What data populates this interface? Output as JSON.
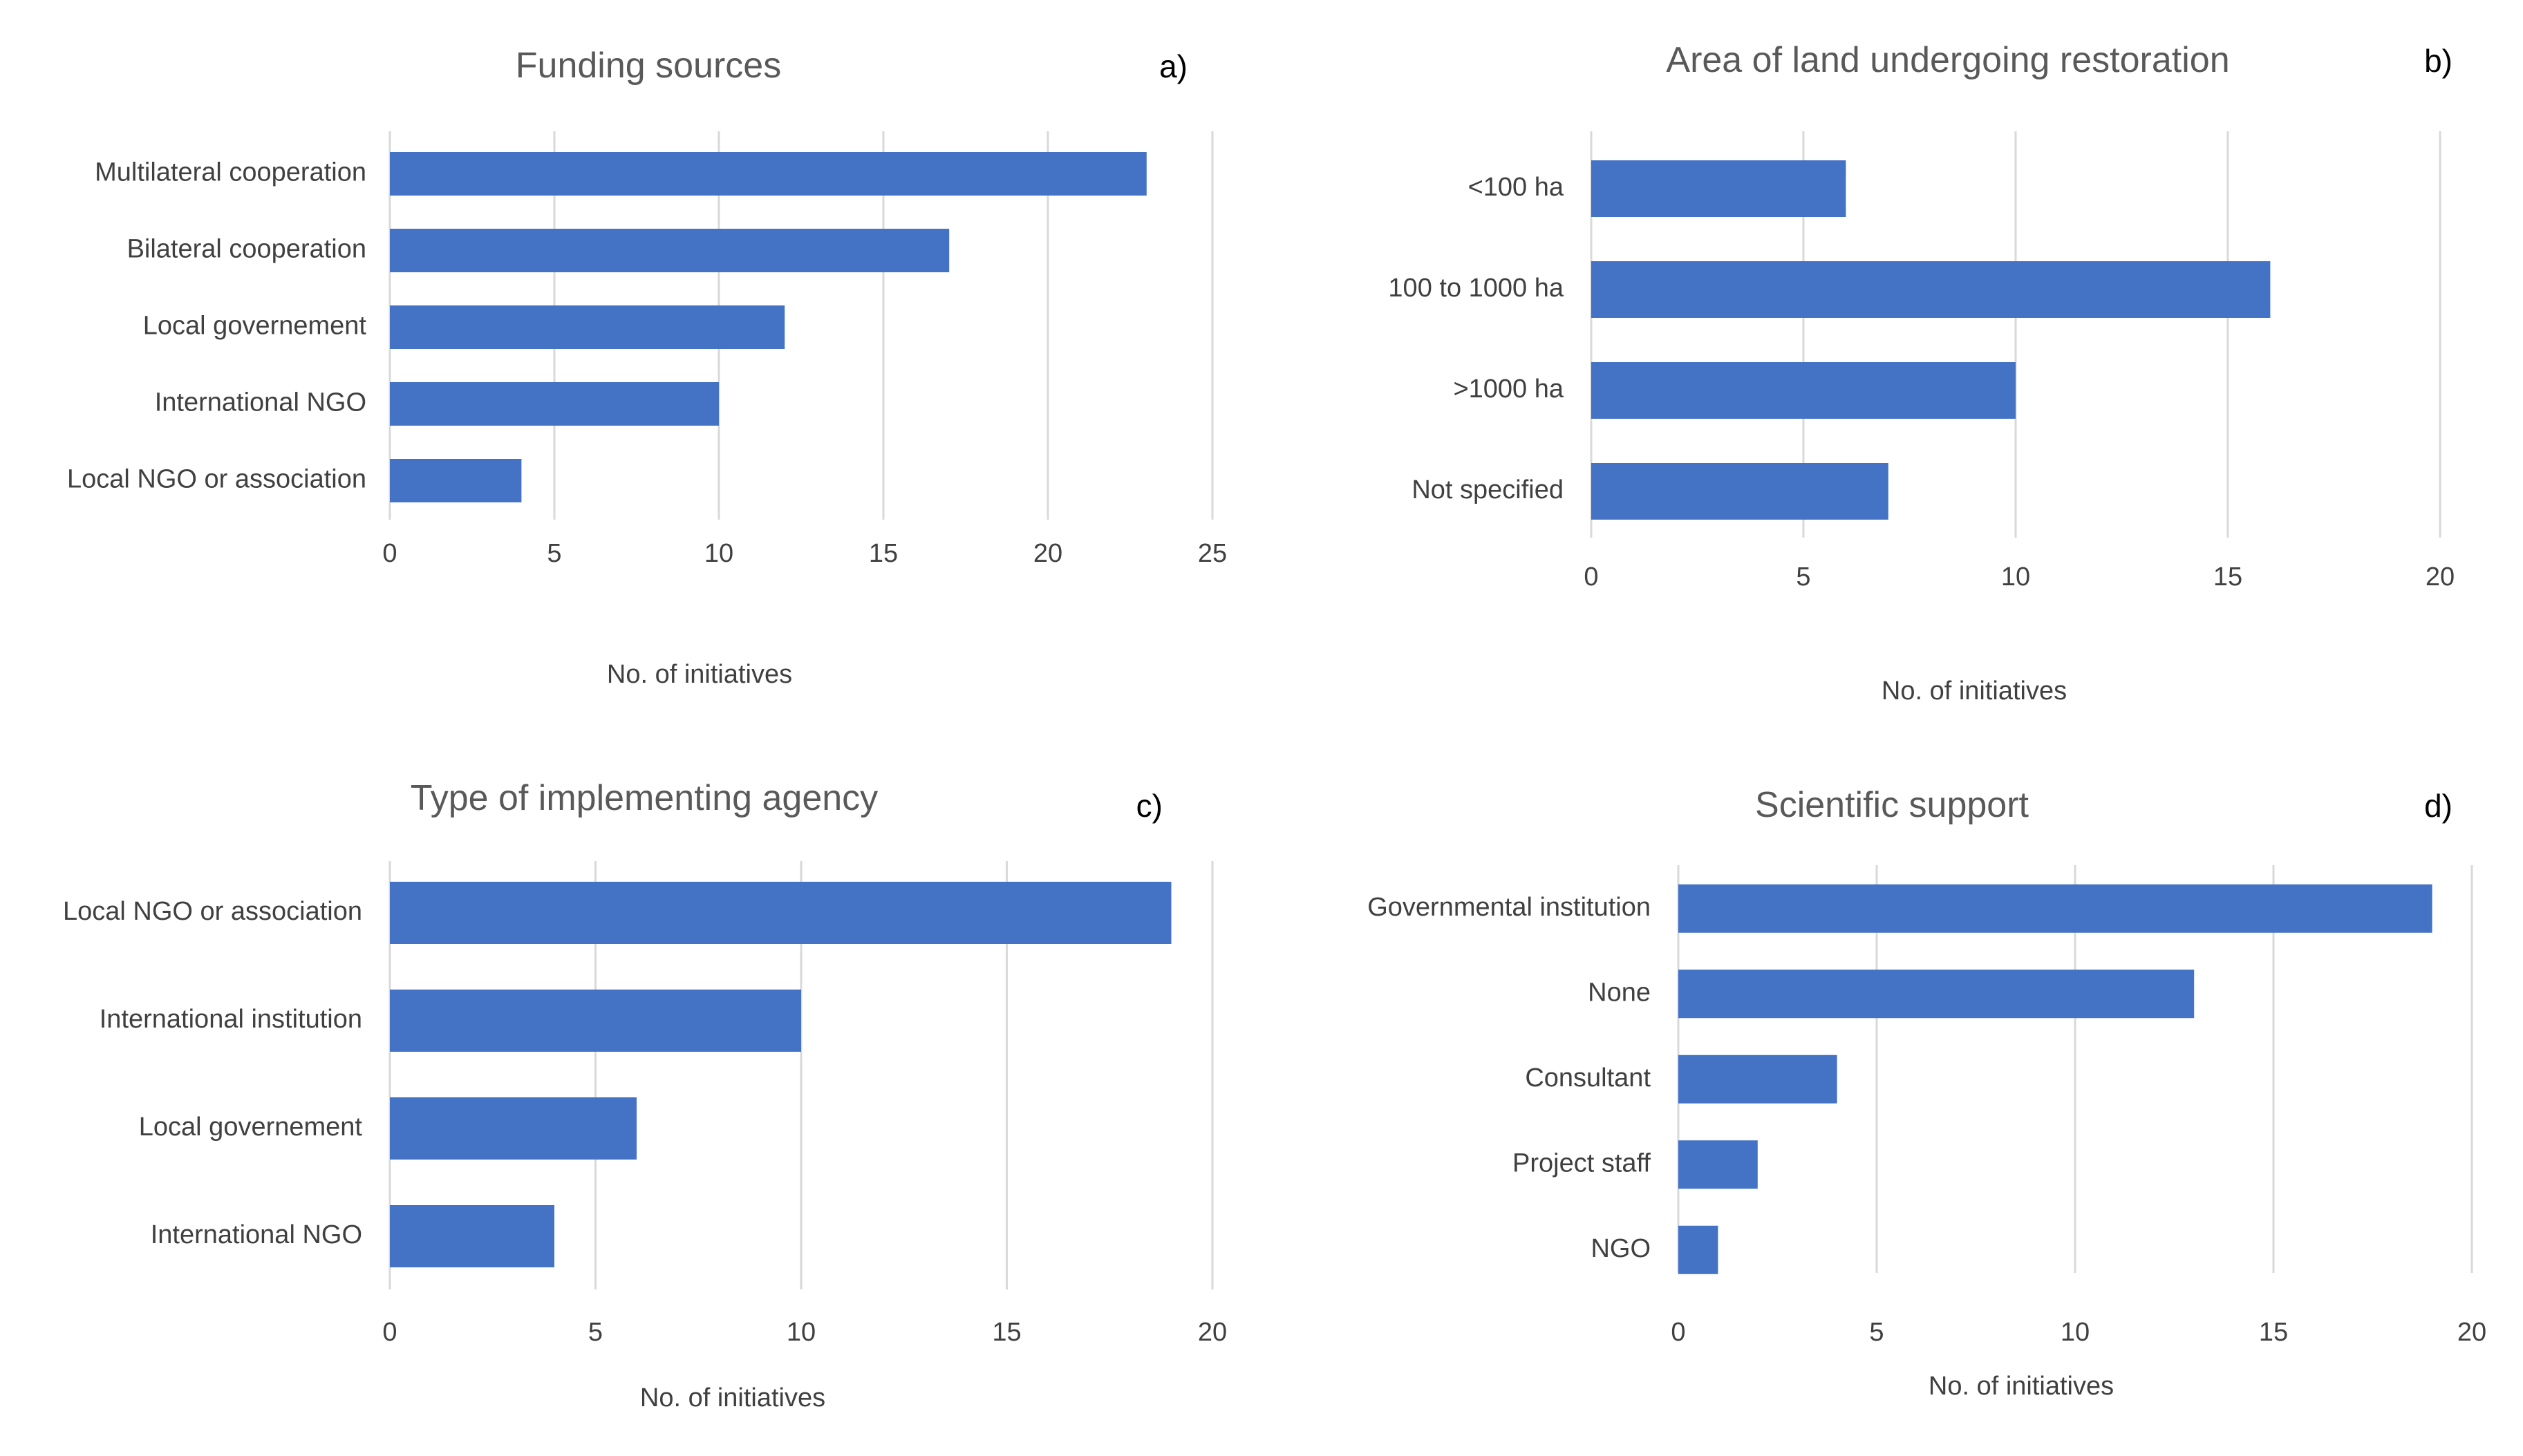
{
  "chart_data": [
    {
      "type": "bar",
      "orientation": "horizontal",
      "title": "Funding sources",
      "panel_label": "a)",
      "xlabel": "No. of initiatives",
      "ylabel": "",
      "categories": [
        "Multilateral cooperation",
        "Bilateral cooperation",
        "Local governement",
        "International NGO",
        "Local NGO or association"
      ],
      "values": [
        23,
        17,
        12,
        10,
        4
      ],
      "xlim": [
        0,
        25
      ],
      "ticks": [
        "0",
        "5",
        "10",
        "15",
        "20",
        "25"
      ],
      "grid": true,
      "legend": "none",
      "bar_color": "#4472c4"
    },
    {
      "type": "bar",
      "orientation": "horizontal",
      "title": "Area of land undergoing restoration",
      "panel_label": "b)",
      "xlabel": "No. of initiatives",
      "ylabel": "",
      "categories": [
        "<100 ha",
        "100 to 1000 ha",
        ">1000 ha",
        "Not specified"
      ],
      "values": [
        6,
        16,
        10,
        7
      ],
      "xlim": [
        0,
        20
      ],
      "ticks": [
        "0",
        "5",
        "10",
        "15",
        "20"
      ],
      "grid": true,
      "legend": "none",
      "bar_color": "#4472c4"
    },
    {
      "type": "bar",
      "orientation": "horizontal",
      "title": "Type of implementing agency",
      "panel_label": "c)",
      "xlabel": "No. of initiatives",
      "ylabel": "",
      "categories": [
        "Local NGO or association",
        "International institution",
        "Local governement",
        "International NGO"
      ],
      "values": [
        19,
        10,
        6,
        4
      ],
      "xlim": [
        0,
        20
      ],
      "ticks": [
        "0",
        "5",
        "10",
        "15",
        "20"
      ],
      "grid": true,
      "legend": "none",
      "bar_color": "#4472c4"
    },
    {
      "type": "bar",
      "orientation": "horizontal",
      "title": "Scientific support",
      "panel_label": "d)",
      "xlabel": "No. of initiatives",
      "ylabel": "",
      "categories": [
        "Governmental institution",
        "None",
        "Consultant",
        "Project staff",
        "NGO"
      ],
      "values": [
        19,
        13,
        4,
        2,
        1
      ],
      "xlim": [
        0,
        20
      ],
      "ticks": [
        "0",
        "5",
        "10",
        "15",
        "20"
      ],
      "grid": true,
      "legend": "none",
      "bar_color": "#4472c4"
    }
  ]
}
